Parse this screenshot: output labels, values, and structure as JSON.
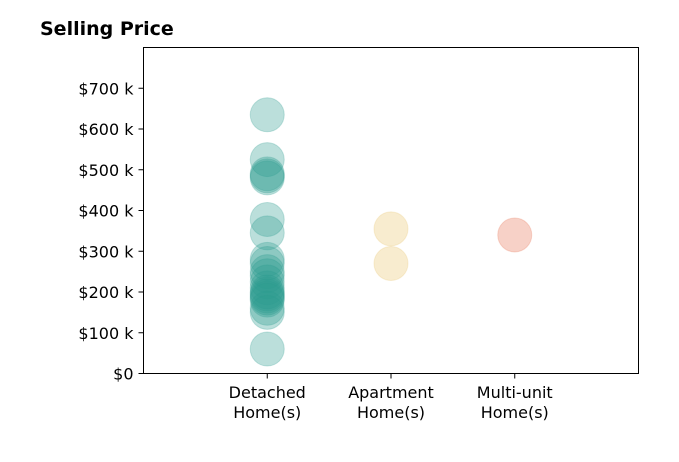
{
  "chart_data": {
    "type": "scatter",
    "title": "Selling Price",
    "xlabel": "",
    "ylabel": "",
    "categories": [
      [
        "Detached",
        "Home(s)"
      ],
      [
        "Apartment",
        "Home(s)"
      ],
      [
        "Multi-unit",
        "Home(s)"
      ]
    ],
    "xlim": [
      -1,
      3
    ],
    "ylim": [
      0,
      800000
    ],
    "y_ticks": [
      {
        "value": 0,
        "label": "$0"
      },
      {
        "value": 100000,
        "label": "$100 k"
      },
      {
        "value": 200000,
        "label": "$200 k"
      },
      {
        "value": 300000,
        "label": "$300 k"
      },
      {
        "value": 400000,
        "label": "$400 k"
      },
      {
        "value": 500000,
        "label": "$500 k"
      },
      {
        "value": 600000,
        "label": "$600 k"
      },
      {
        "value": 700000,
        "label": "$700 k"
      }
    ],
    "grid": false,
    "legend": "none",
    "series": [
      {
        "category_index": 0,
        "color": "#2a9d8f",
        "values": [
          635000,
          525000,
          490000,
          480000,
          485000,
          378000,
          345000,
          280000,
          270000,
          250000,
          240000,
          225000,
          210000,
          200000,
          195000,
          190000,
          185000,
          180000,
          160000,
          150000,
          60000
        ]
      },
      {
        "category_index": 1,
        "color": "#e9c46a",
        "values": [
          355000,
          270000
        ]
      },
      {
        "category_index": 2,
        "color": "#e76f51",
        "values": [
          340000
        ]
      }
    ]
  }
}
